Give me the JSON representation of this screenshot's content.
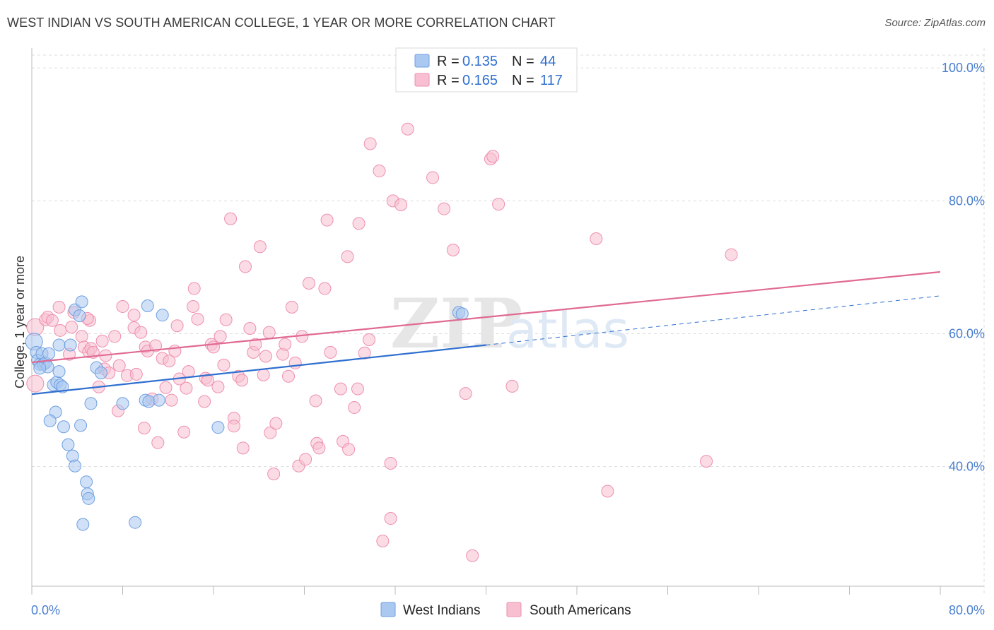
{
  "title": "WEST INDIAN VS SOUTH AMERICAN COLLEGE, 1 YEAR OR MORE CORRELATION CHART",
  "source": "Source: ZipAtlas.com",
  "watermark": {
    "zip": "ZIP",
    "atlas": "atlas"
  },
  "colors": {
    "west_indians_fill": "#aac8f0",
    "west_indians_stroke": "#6f9fe0",
    "west_indians_line": "#2f6fd0",
    "south_americans_fill": "#f7bfd0",
    "south_americans_stroke": "#ee8fae",
    "south_americans_line": "#e06a92",
    "grid": "#dddddd",
    "tick_label": "#4a7fd0"
  },
  "legend": {
    "rows": [
      {
        "r_label": "R = ",
        "r_value": "0.135",
        "n_label": "N = ",
        "n_value": "44"
      },
      {
        "r_label": "R = ",
        "r_value": "0.165",
        "n_label": "N = ",
        "n_value": "117"
      }
    ]
  },
  "chart_data": {
    "type": "scatter",
    "title": "WEST INDIAN VS SOUTH AMERICAN COLLEGE, 1 YEAR OR MORE CORRELATION CHART",
    "xlabel": "",
    "ylabel": "College, 1 year or more",
    "xlim": [
      0,
      80
    ],
    "ylim": [
      22,
      103
    ],
    "x_tick_labels": [
      "0.0%",
      "80.0%"
    ],
    "y_ticks": [
      40,
      60,
      80,
      100
    ],
    "y_tick_labels": [
      "40.0%",
      "60.0%",
      "80.0%",
      "100.0%"
    ],
    "grid": true,
    "legend_position": "top-center",
    "series": [
      {
        "name": "West Indians",
        "r": 0.135,
        "n": 44,
        "trend": {
          "x0": 0,
          "y0": 50.9,
          "x1": 40,
          "y1": 58.3,
          "dash_to_x": 80,
          "dash_to_y": 65.7
        },
        "points": [
          [
            0.2,
            58.8
          ],
          [
            0.4,
            57.2
          ],
          [
            0.5,
            56.0
          ],
          [
            0.7,
            55.4
          ],
          [
            0.9,
            57.0
          ],
          [
            1.0,
            55.4
          ],
          [
            1.2,
            55.6
          ],
          [
            1.4,
            55.0
          ],
          [
            1.5,
            57.0
          ],
          [
            1.9,
            52.3
          ],
          [
            2.2,
            52.7
          ],
          [
            2.4,
            54.3
          ],
          [
            2.5,
            52.3
          ],
          [
            2.7,
            52.0
          ],
          [
            2.4,
            58.3
          ],
          [
            3.4,
            58.3
          ],
          [
            3.8,
            63.6
          ],
          [
            4.2,
            62.7
          ],
          [
            4.4,
            64.8
          ],
          [
            2.1,
            48.2
          ],
          [
            1.6,
            46.9
          ],
          [
            2.8,
            46.0
          ],
          [
            3.2,
            43.3
          ],
          [
            3.6,
            41.6
          ],
          [
            3.8,
            40.1
          ],
          [
            4.3,
            46.2
          ],
          [
            4.8,
            37.7
          ],
          [
            4.9,
            35.9
          ],
          [
            5.0,
            35.2
          ],
          [
            4.5,
            31.3
          ],
          [
            5.2,
            49.5
          ],
          [
            5.7,
            54.9
          ],
          [
            6.1,
            54.1
          ],
          [
            8.0,
            49.5
          ],
          [
            10.0,
            50.0
          ],
          [
            10.3,
            49.8
          ],
          [
            10.2,
            64.2
          ],
          [
            11.5,
            62.8
          ],
          [
            9.1,
            31.6
          ],
          [
            16.4,
            45.9
          ],
          [
            11.2,
            50.0
          ],
          [
            37.6,
            63.2
          ],
          [
            37.9,
            63.0
          ],
          [
            0.7,
            54.8
          ]
        ]
      },
      {
        "name": "South Americans",
        "r": 0.165,
        "n": 117,
        "trend": {
          "x0": 0,
          "y0": 55.7,
          "x1": 80,
          "y1": 69.3
        },
        "points": [
          [
            0.3,
            61.0
          ],
          [
            0.3,
            52.5
          ],
          [
            1.2,
            62.1
          ],
          [
            1.4,
            62.5
          ],
          [
            1.8,
            62.0
          ],
          [
            2.4,
            64.0
          ],
          [
            2.5,
            60.5
          ],
          [
            3.5,
            61.0
          ],
          [
            3.7,
            63.2
          ],
          [
            4.4,
            59.6
          ],
          [
            4.6,
            58.0
          ],
          [
            5.0,
            57.3
          ],
          [
            5.1,
            62.0
          ],
          [
            5.2,
            57.8
          ],
          [
            5.4,
            57.2
          ],
          [
            6.2,
            58.9
          ],
          [
            6.4,
            54.7
          ],
          [
            6.5,
            56.7
          ],
          [
            6.8,
            54.1
          ],
          [
            7.3,
            59.6
          ],
          [
            7.7,
            55.2
          ],
          [
            8.0,
            64.1
          ],
          [
            8.4,
            53.7
          ],
          [
            9.0,
            60.9
          ],
          [
            9.2,
            53.9
          ],
          [
            9.0,
            62.8
          ],
          [
            9.6,
            60.2
          ],
          [
            10.0,
            58.0
          ],
          [
            10.2,
            57.4
          ],
          [
            10.6,
            50.2
          ],
          [
            10.9,
            58.2
          ],
          [
            11.5,
            56.3
          ],
          [
            11.8,
            51.9
          ],
          [
            12.1,
            55.9
          ],
          [
            12.3,
            50.0
          ],
          [
            12.6,
            57.4
          ],
          [
            13.0,
            53.2
          ],
          [
            13.4,
            45.2
          ],
          [
            13.6,
            51.8
          ],
          [
            13.8,
            54.3
          ],
          [
            14.2,
            64.1
          ],
          [
            14.3,
            66.8
          ],
          [
            14.6,
            62.2
          ],
          [
            15.3,
            53.3
          ],
          [
            15.5,
            53.0
          ],
          [
            15.8,
            58.4
          ],
          [
            16.0,
            58.0
          ],
          [
            16.4,
            52.0
          ],
          [
            16.6,
            59.6
          ],
          [
            16.9,
            55.3
          ],
          [
            17.1,
            62.1
          ],
          [
            17.5,
            77.3
          ],
          [
            17.8,
            47.3
          ],
          [
            18.2,
            53.6
          ],
          [
            18.5,
            53.0
          ],
          [
            18.6,
            42.8
          ],
          [
            18.8,
            70.1
          ],
          [
            19.2,
            60.8
          ],
          [
            19.5,
            57.2
          ],
          [
            19.7,
            58.4
          ],
          [
            20.1,
            73.1
          ],
          [
            20.4,
            53.8
          ],
          [
            20.6,
            56.6
          ],
          [
            21.0,
            45.1
          ],
          [
            21.3,
            38.9
          ],
          [
            21.5,
            46.5
          ],
          [
            22.1,
            56.9
          ],
          [
            22.3,
            58.4
          ],
          [
            22.6,
            53.6
          ],
          [
            22.9,
            64.0
          ],
          [
            23.2,
            55.6
          ],
          [
            23.5,
            40.1
          ],
          [
            23.8,
            59.6
          ],
          [
            24.1,
            41.1
          ],
          [
            24.4,
            67.6
          ],
          [
            25.0,
            49.9
          ],
          [
            25.1,
            43.5
          ],
          [
            25.3,
            42.8
          ],
          [
            25.8,
            66.8
          ],
          [
            26.0,
            77.1
          ],
          [
            26.3,
            57.2
          ],
          [
            27.4,
            43.8
          ],
          [
            27.8,
            71.6
          ],
          [
            27.9,
            42.6
          ],
          [
            28.4,
            48.9
          ],
          [
            28.7,
            51.7
          ],
          [
            28.8,
            76.6
          ],
          [
            29.3,
            57.1
          ],
          [
            29.7,
            59.1
          ],
          [
            29.8,
            88.6
          ],
          [
            30.6,
            84.5
          ],
          [
            30.9,
            28.8
          ],
          [
            31.6,
            32.2
          ],
          [
            31.8,
            80.0
          ],
          [
            32.5,
            79.4
          ],
          [
            33.1,
            90.8
          ],
          [
            35.3,
            83.5
          ],
          [
            36.3,
            78.8
          ],
          [
            37.1,
            72.6
          ],
          [
            38.2,
            51.0
          ],
          [
            38.8,
            26.6
          ],
          [
            40.4,
            86.3
          ],
          [
            40.6,
            86.7
          ],
          [
            41.1,
            79.5
          ],
          [
            42.3,
            52.1
          ],
          [
            49.7,
            74.3
          ],
          [
            50.7,
            36.3
          ],
          [
            59.4,
            40.8
          ],
          [
            61.6,
            71.9
          ],
          [
            5.9,
            52.0
          ],
          [
            7.6,
            48.4
          ],
          [
            9.9,
            45.8
          ],
          [
            15.2,
            49.8
          ],
          [
            20.9,
            60.2
          ],
          [
            27.2,
            51.7
          ],
          [
            31.6,
            40.5
          ],
          [
            11.1,
            43.6
          ],
          [
            17.8,
            46.1
          ],
          [
            3.3,
            56.9
          ],
          [
            4.9,
            62.3
          ],
          [
            12.8,
            61.2
          ]
        ]
      }
    ]
  }
}
